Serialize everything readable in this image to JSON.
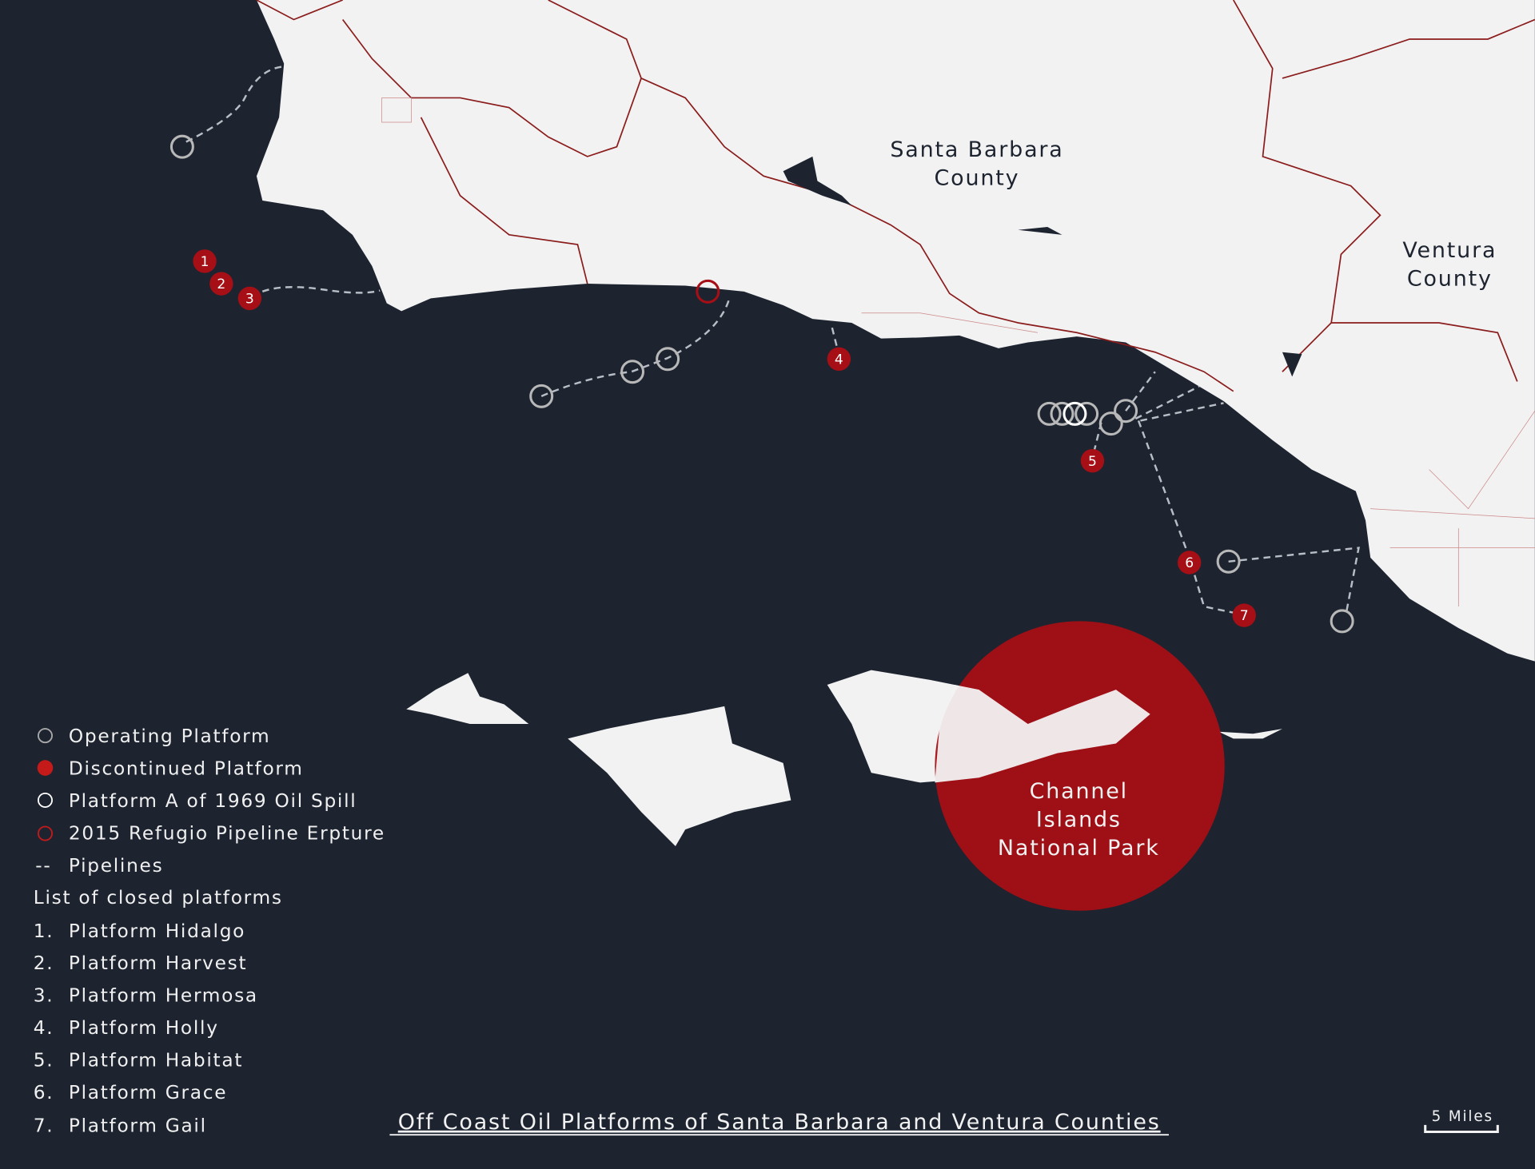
{
  "title": "Off Coast Oil Platforms of Santa Barbara and Ventura Counties",
  "labels": {
    "santa_barbara": [
      "Santa Barbara",
      "County"
    ],
    "ventura": [
      "Ventura",
      "County"
    ],
    "park": [
      "Channel",
      "Islands",
      "National Park"
    ]
  },
  "legend": {
    "operating": "Operating Platform",
    "discontinued": "Discontinued Platform",
    "platform_a": "Platform A of 1969 Oil Spill",
    "refugio": "2015 Refugio Pipeline Erpture",
    "pipelines_symbol": "--",
    "pipelines": "Pipelines",
    "list_title": "List of closed platforms",
    "closed": [
      {
        "num": "1.",
        "name": "Platform Hidalgo"
      },
      {
        "num": "2.",
        "name": "Platform Harvest"
      },
      {
        "num": "3.",
        "name": "Platform Hermosa"
      },
      {
        "num": "4.",
        "name": "Platform Holly"
      },
      {
        "num": "5.",
        "name": "Platform Habitat"
      },
      {
        "num": "6.",
        "name": "Platform Grace"
      },
      {
        "num": "7.",
        "name": "Platform Gail"
      }
    ]
  },
  "markers": [
    "1",
    "2",
    "3",
    "4",
    "5",
    "6",
    "7"
  ],
  "scale": "5 Miles",
  "colors": {
    "ocean": "#1d2430",
    "land": "#f2f2f2",
    "accent": "#a50f15",
    "operating": "#b8b8b8"
  }
}
